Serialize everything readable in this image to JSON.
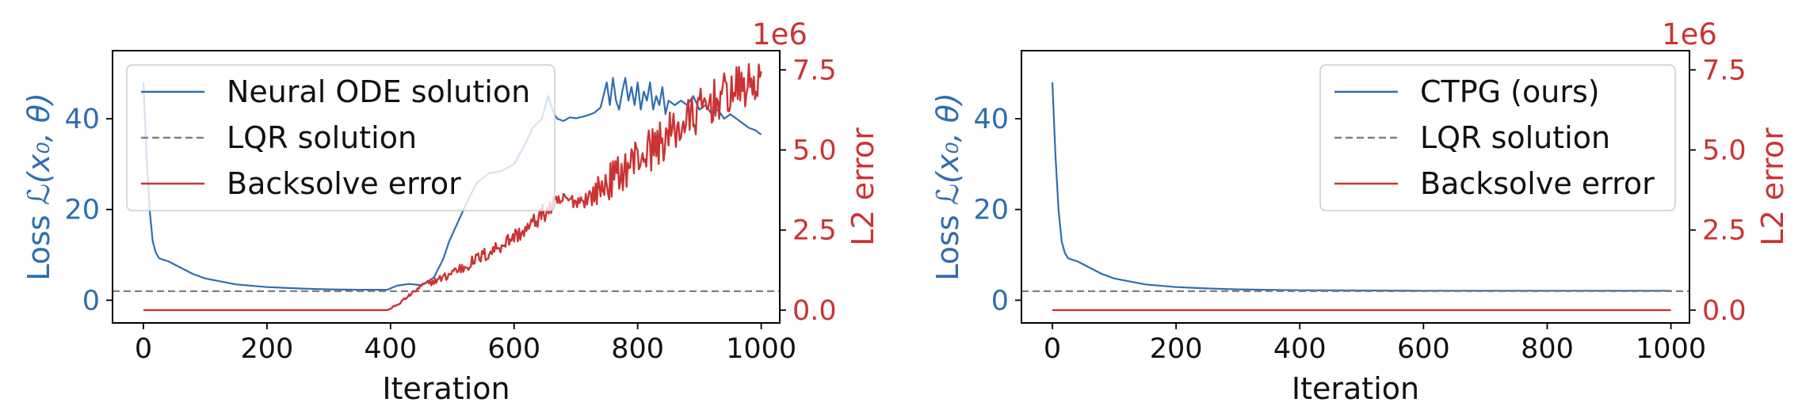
{
  "colors": {
    "loss": "#2f6eb0",
    "error": "#cc3333",
    "reference": "#808080",
    "axis": "#000000"
  },
  "chart_data": [
    {
      "type": "line",
      "xlabel": "Iteration",
      "ylabel_left_prefix": "Loss",
      "ylabel_left_math": "ℒ(x₀, θ)",
      "ylabel_right": "L2 error",
      "right_multiplier": "1e6",
      "xlim": [
        -50,
        1030
      ],
      "ylim_left": [
        -5,
        55
      ],
      "ylim_right": [
        -0.4,
        8.1
      ],
      "x_ticks": [
        0,
        200,
        400,
        600,
        800,
        1000
      ],
      "x_tick_labels": [
        "0",
        "200",
        "400",
        "600",
        "800",
        "1000"
      ],
      "y_left_ticks": [
        0,
        20,
        40
      ],
      "y_left_tick_labels": [
        "0",
        "20",
        "40"
      ],
      "y_right_ticks": [
        0,
        2.5,
        5,
        7.5
      ],
      "y_right_tick_labels": [
        "0.0",
        "2.5",
        "5.0",
        "7.5"
      ],
      "legend_position": "upper-left",
      "legend": [
        "Neural ODE solution",
        "LQR solution",
        "Backsolve error"
      ],
      "series": [
        {
          "name": "Neural ODE solution",
          "axis": "left",
          "style": "solid",
          "x": [
            0,
            5,
            10,
            15,
            20,
            25,
            30,
            40,
            60,
            80,
            100,
            150,
            200,
            250,
            300,
            350,
            395,
            410,
            430,
            450,
            470,
            485,
            495,
            505,
            515,
            525,
            540,
            560,
            580,
            600,
            620,
            630,
            645,
            655,
            665,
            670,
            680,
            690,
            700,
            710,
            720,
            730,
            740,
            750,
            755,
            760,
            765,
            770,
            775,
            780,
            785,
            790,
            795,
            800,
            805,
            810,
            815,
            820,
            825,
            830,
            835,
            840,
            845,
            850,
            860,
            870,
            880,
            890,
            900,
            910,
            920,
            930,
            940,
            950,
            960,
            970,
            980,
            990,
            1000
          ],
          "y": [
            48,
            32,
            20,
            13,
            10.5,
            9.3,
            9,
            8.6,
            7.2,
            5.8,
            4.8,
            3.5,
            2.9,
            2.6,
            2.4,
            2.3,
            2.3,
            3.2,
            3.6,
            3.3,
            5,
            9,
            13,
            16,
            19,
            22,
            26,
            28,
            28.5,
            30,
            35,
            38,
            40,
            45,
            41,
            40,
            39.5,
            40.3,
            40.1,
            40.4,
            40.8,
            41.3,
            42.5,
            48,
            43,
            49,
            44,
            42,
            46,
            49,
            44,
            47,
            43,
            48,
            42,
            46,
            44,
            48,
            42,
            45,
            43,
            47,
            41,
            44,
            43,
            44,
            43,
            45,
            42,
            43,
            41,
            42,
            40,
            41,
            40,
            39,
            38,
            37.5,
            36.5
          ]
        },
        {
          "name": "LQR solution",
          "axis": "left",
          "style": "dashed",
          "x": [
            -50,
            1030
          ],
          "y": [
            2.0,
            2.0
          ]
        },
        {
          "name": "Backsolve error",
          "axis": "right",
          "style": "solid",
          "generator": "noisy-growth",
          "x": [
            0,
            50,
            100,
            150,
            200,
            250,
            300,
            350,
            395,
            410,
            420,
            430,
            440,
            450,
            470,
            490,
            500,
            520,
            540,
            560,
            580,
            600,
            620,
            640,
            660,
            680,
            700,
            720,
            740,
            760,
            780,
            800,
            820,
            840,
            860,
            880,
            900,
            920,
            940,
            960,
            980,
            1000
          ],
          "y": [
            0,
            0,
            0,
            0,
            0,
            0,
            0,
            0,
            0,
            0.15,
            0.3,
            0.45,
            0.6,
            0.75,
            0.9,
            1.05,
            1.2,
            1.35,
            1.6,
            1.8,
            2.05,
            2.3,
            2.5,
            2.9,
            3.2,
            3.45,
            3.4,
            3.5,
            3.8,
            4.1,
            4.4,
            4.8,
            5.0,
            5.3,
            5.6,
            5.9,
            6.2,
            6.5,
            6.7,
            6.9,
            7.0,
            7.2
          ],
          "noise": [
            0,
            0,
            0,
            0,
            0,
            0,
            0,
            0,
            0,
            0.05,
            0.05,
            0.05,
            0.05,
            0.1,
            0.1,
            0.15,
            0.2,
            0.2,
            0.2,
            0.25,
            0.25,
            0.25,
            0.25,
            0.3,
            0.3,
            0.25,
            0.2,
            0.3,
            0.5,
            0.6,
            0.6,
            0.7,
            0.7,
            0.7,
            0.7,
            0.7,
            0.7,
            0.7,
            0.7,
            0.7,
            0.7,
            0.7
          ]
        }
      ]
    },
    {
      "type": "line",
      "xlabel": "Iteration",
      "ylabel_left_prefix": "Loss",
      "ylabel_left_math": "ℒ(x₀, θ)",
      "ylabel_right": "L2 error",
      "right_multiplier": "1e6",
      "xlim": [
        -50,
        1030
      ],
      "ylim_left": [
        -5,
        55
      ],
      "ylim_right": [
        -0.4,
        8.1
      ],
      "x_ticks": [
        0,
        200,
        400,
        600,
        800,
        1000
      ],
      "x_tick_labels": [
        "0",
        "200",
        "400",
        "600",
        "800",
        "1000"
      ],
      "y_left_ticks": [
        0,
        20,
        40
      ],
      "y_left_tick_labels": [
        "0",
        "20",
        "40"
      ],
      "y_right_ticks": [
        0,
        2.5,
        5,
        7.5
      ],
      "y_right_tick_labels": [
        "0.0",
        "2.5",
        "5.0",
        "7.5"
      ],
      "legend_position": "upper-right",
      "legend": [
        "CTPG (ours)",
        "LQR solution",
        "Backsolve error"
      ],
      "series": [
        {
          "name": "CTPG (ours)",
          "axis": "left",
          "style": "solid",
          "x": [
            0,
            5,
            10,
            15,
            20,
            25,
            30,
            40,
            60,
            80,
            100,
            150,
            200,
            250,
            300,
            400,
            500,
            600,
            700,
            800,
            900,
            1000
          ],
          "y": [
            48,
            32,
            20,
            13,
            10.5,
            9.3,
            9,
            8.6,
            7.2,
            5.8,
            4.8,
            3.5,
            2.9,
            2.6,
            2.4,
            2.2,
            2.15,
            2.1,
            2.1,
            2.1,
            2.1,
            2.1
          ]
        },
        {
          "name": "LQR solution",
          "axis": "left",
          "style": "dashed",
          "x": [
            -50,
            1030
          ],
          "y": [
            2.0,
            2.0
          ]
        },
        {
          "name": "Backsolve error",
          "axis": "right",
          "style": "solid",
          "x": [
            0,
            1000
          ],
          "y": [
            0,
            0
          ]
        }
      ]
    }
  ]
}
